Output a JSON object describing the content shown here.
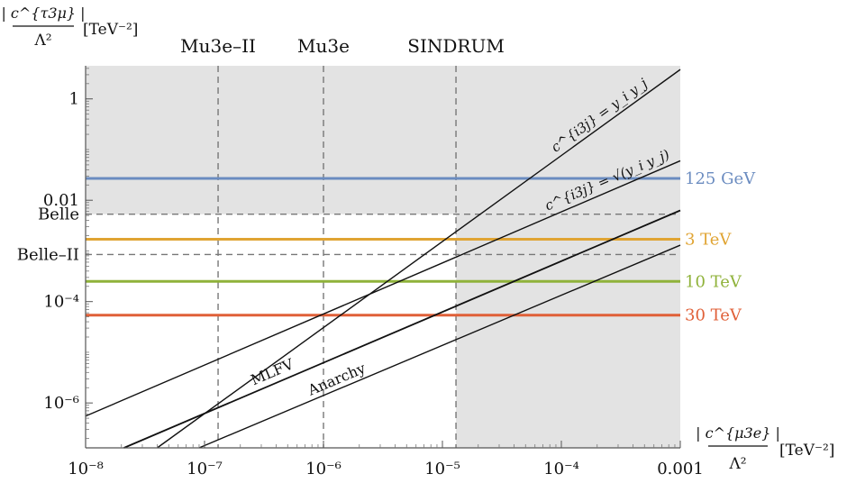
{
  "chart_data": {
    "type": "line",
    "xscale": "log",
    "yscale": "log",
    "xlim": [
      1e-08,
      0.001
    ],
    "ylim": [
      1.3e-07,
      4.5
    ],
    "xlabel": {
      "numerator": "| c^{μ3e} |",
      "denominator": "Λ²",
      "unit": "[TeV⁻²]"
    },
    "ylabel": {
      "numerator": "| c^{τ3μ} |",
      "denominator": "Λ²",
      "unit": "[TeV⁻²]"
    },
    "x_ticks": [
      {
        "value": 1e-08,
        "label": "10⁻⁸"
      },
      {
        "value": 1e-07,
        "label": "10⁻⁷"
      },
      {
        "value": 1e-06,
        "label": "10⁻⁶"
      },
      {
        "value": 1e-05,
        "label": "10⁻⁵"
      },
      {
        "value": 0.0001,
        "label": "10⁻⁴"
      },
      {
        "value": 0.001,
        "label": "0.001"
      }
    ],
    "y_ticks": [
      {
        "value": 1,
        "label": "1"
      },
      {
        "value": 0.01,
        "label": "0.01"
      },
      {
        "value": 0.0001,
        "label": "10⁻⁴"
      },
      {
        "value": 1e-06,
        "label": "10⁻⁶"
      }
    ],
    "excluded_regions": [
      {
        "axis": "y",
        "from": 0.0053,
        "color": "#e3e3e3"
      },
      {
        "axis": "x",
        "from": 1.3e-05,
        "color": "#e3e3e3"
      }
    ],
    "vertical_limits": [
      {
        "name": "Mu3e–II",
        "x": 1.3e-07
      },
      {
        "name": "Mu3e",
        "x": 1e-06
      },
      {
        "name": "SINDRUM",
        "x": 1.3e-05
      }
    ],
    "horizontal_limits": [
      {
        "name": "Belle",
        "y": 0.0053
      },
      {
        "name": "Belle–II",
        "y": 0.00085
      }
    ],
    "scale_lines": [
      {
        "name": "125 GeV",
        "y": 0.027,
        "color": "#6b8cc0"
      },
      {
        "name": "3 TeV",
        "y": 0.0017,
        "color": "#e0a433"
      },
      {
        "name": "10 TeV",
        "y": 0.00025,
        "color": "#8fb23a"
      },
      {
        "name": "30 TeV",
        "y": 5.4e-05,
        "color": "#e06038"
      }
    ],
    "diagonal_lines": [
      {
        "name": "c^{i3j} = y_i y_j",
        "x": [
          4e-08,
          0.001
        ],
        "y": [
          1.3e-07,
          3.8
        ]
      },
      {
        "name": "c^{i3j} = √(y_i y_j)",
        "x": [
          1e-08,
          0.001
        ],
        "y": [
          5.5e-07,
          0.06
        ]
      },
      {
        "name": "MLFV",
        "x": [
          2.1e-08,
          0.001
        ],
        "y": [
          1.3e-07,
          0.0063
        ]
      },
      {
        "name": "Anarchy",
        "x": [
          9e-08,
          0.001
        ],
        "y": [
          1.3e-07,
          0.0013
        ]
      }
    ],
    "line_annotations": [
      {
        "text": "c^{i3j} = y_i y_j",
        "line": 0
      },
      {
        "text": "c^{i3j} = √(y_i y_j)",
        "line": 1
      },
      {
        "text": "MLFV",
        "line": 2
      },
      {
        "text": "Anarchy",
        "line": 3
      }
    ]
  }
}
